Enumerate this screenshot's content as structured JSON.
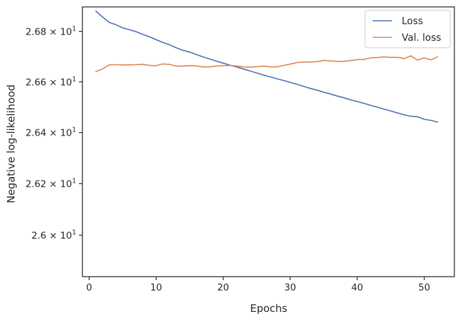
{
  "chart_data": {
    "type": "line",
    "xlabel": "Epochs",
    "ylabel": "Negative log-likelihood",
    "xlim": [
      -1,
      54.5
    ],
    "ylim": [
      25.84,
      26.898
    ],
    "log_y": true,
    "grid": false,
    "legend_position": "top-right",
    "x_ticks": [
      0,
      10,
      20,
      30,
      40,
      50
    ],
    "x_tick_labels": [
      "0",
      "10",
      "20",
      "30",
      "40",
      "50"
    ],
    "y_ticks": [
      26.0,
      26.2,
      26.4,
      26.6,
      26.8
    ],
    "y_tick_labels": [
      {
        "mantissa": "2.6",
        "exponent": "1"
      },
      {
        "mantissa": "2.62",
        "exponent": "1"
      },
      {
        "mantissa": "2.64",
        "exponent": "1"
      },
      {
        "mantissa": "2.66",
        "exponent": "1"
      },
      {
        "mantissa": "2.68",
        "exponent": "1"
      }
    ],
    "x": [
      1,
      2,
      3,
      4,
      5,
      6,
      7,
      8,
      9,
      10,
      11,
      12,
      13,
      14,
      15,
      16,
      17,
      18,
      19,
      20,
      21,
      22,
      23,
      24,
      25,
      26,
      27,
      28,
      29,
      30,
      31,
      32,
      33,
      34,
      35,
      36,
      37,
      38,
      39,
      40,
      41,
      42,
      43,
      44,
      45,
      46,
      47,
      48,
      49,
      50,
      51,
      52
    ],
    "series": [
      {
        "name": "Loss",
        "color": "#4c72b0",
        "values": [
          26.881,
          26.858,
          26.836,
          26.827,
          26.814,
          26.807,
          26.799,
          26.788,
          26.779,
          26.767,
          26.756,
          26.747,
          26.735,
          26.725,
          26.718,
          26.708,
          26.699,
          26.69,
          26.682,
          26.674,
          26.666,
          26.659,
          26.651,
          26.643,
          26.635,
          26.627,
          26.62,
          26.612,
          26.605,
          26.598,
          26.59,
          26.582,
          26.574,
          26.567,
          26.559,
          26.552,
          26.544,
          26.537,
          26.529,
          26.522,
          26.515,
          26.507,
          26.5,
          26.492,
          26.485,
          26.477,
          26.47,
          26.464,
          26.462,
          26.452,
          26.448,
          26.441
        ]
      },
      {
        "name": "Val. loss",
        "color": "#dd8452",
        "values": [
          26.641,
          26.651,
          26.667,
          26.668,
          26.667,
          26.667,
          26.668,
          26.669,
          26.665,
          26.664,
          26.671,
          26.669,
          26.662,
          26.662,
          26.664,
          26.663,
          26.659,
          26.659,
          26.662,
          26.664,
          26.665,
          26.662,
          26.659,
          26.658,
          26.66,
          26.662,
          26.659,
          26.659,
          26.665,
          26.67,
          26.676,
          26.679,
          26.678,
          26.68,
          26.685,
          26.683,
          26.681,
          26.681,
          26.684,
          26.688,
          26.689,
          26.695,
          26.696,
          26.699,
          26.697,
          26.697,
          26.692,
          26.703,
          26.686,
          26.695,
          26.687,
          26.699
        ]
      }
    ]
  }
}
